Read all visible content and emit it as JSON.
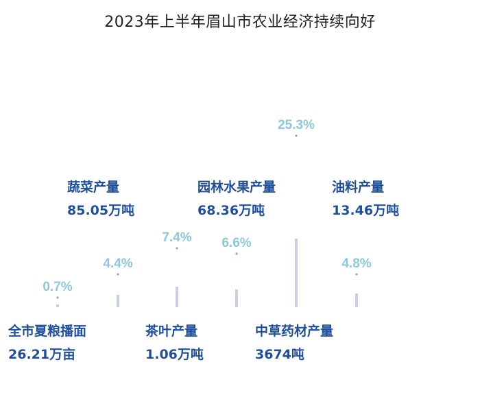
{
  "title": "2023年上半年眉山市农业经济持续向好",
  "colors": {
    "pct_text": "#8cc7dc",
    "bar": "#c9cfe0",
    "dot": "#8fa7c4",
    "label": "#1f4f9c",
    "title": "#222222"
  },
  "chart_data": {
    "type": "bar",
    "title": "2023年上半年眉山市农业经济持续向好",
    "categories": [
      "全市夏粮播面",
      "蔬菜产量",
      "茶叶产量",
      "园林水果产量",
      "中草药材产量",
      "油料产量"
    ],
    "values": [
      0.7,
      4.4,
      7.4,
      6.6,
      25.3,
      4.8
    ],
    "value_labels": [
      "0.7%",
      "4.4%",
      "7.4%",
      "6.6%",
      "25.3%",
      "4.8%"
    ],
    "unit": "%",
    "ylim": [
      0,
      30
    ],
    "grid": false,
    "legend": "none"
  },
  "labels": [
    {
      "name": "全市夏粮播面",
      "value": "26.21万亩"
    },
    {
      "name": "蔬菜产量",
      "value": "85.05万吨"
    },
    {
      "name": "茶叶产量",
      "value": "1.06万吨"
    },
    {
      "name": "园林水果产量",
      "value": "68.36万吨"
    },
    {
      "name": "中草药材产量",
      "value": "3674吨"
    },
    {
      "name": "油料产量",
      "value": "13.46万吨"
    }
  ]
}
